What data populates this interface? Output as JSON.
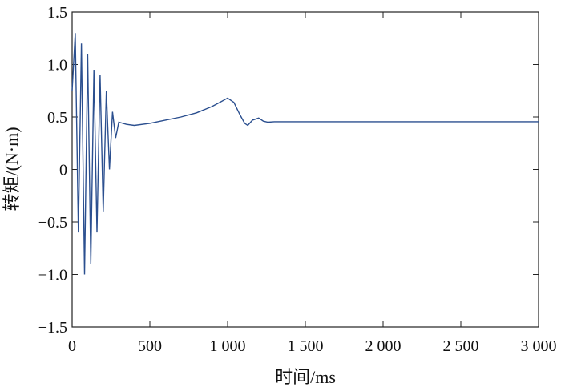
{
  "chart_data": {
    "type": "line",
    "xlabel": "时间/ms",
    "ylabel": "转矩/(N·m)",
    "xlim": [
      0,
      3000
    ],
    "ylim": [
      -1.5,
      1.5
    ],
    "xticks": [
      0,
      500,
      1000,
      1500,
      2000,
      2500,
      3000
    ],
    "xtick_labels": [
      "0",
      "500",
      "1 000",
      "1 500",
      "2 000",
      "2 500",
      "3 000"
    ],
    "yticks": [
      -1.5,
      -1.0,
      -0.5,
      0,
      0.5,
      1.0,
      1.5
    ],
    "ytick_labels": [
      "−1.5",
      "−1.0",
      "−0.5",
      "0",
      "0.5",
      "1.0",
      "1.5"
    ],
    "grid": false,
    "line_color": "#2b4f8f",
    "series": [
      {
        "name": "",
        "x": [
          0,
          20,
          40,
          60,
          80,
          100,
          120,
          140,
          160,
          180,
          200,
          220,
          240,
          260,
          280,
          300,
          350,
          400,
          500,
          600,
          700,
          800,
          900,
          950,
          1000,
          1040,
          1080,
          1110,
          1130,
          1160,
          1200,
          1230,
          1260,
          1300,
          1400,
          1600,
          2000,
          2500,
          3000
        ],
        "y": [
          0.75,
          1.3,
          -0.6,
          1.2,
          -1.0,
          1.1,
          -0.9,
          0.95,
          -0.6,
          0.9,
          -0.4,
          0.75,
          0.0,
          0.55,
          0.3,
          0.45,
          0.43,
          0.42,
          0.44,
          0.47,
          0.5,
          0.54,
          0.6,
          0.64,
          0.68,
          0.64,
          0.52,
          0.44,
          0.42,
          0.47,
          0.49,
          0.46,
          0.45,
          0.455,
          0.455,
          0.455,
          0.455,
          0.455,
          0.455
        ]
      }
    ]
  }
}
